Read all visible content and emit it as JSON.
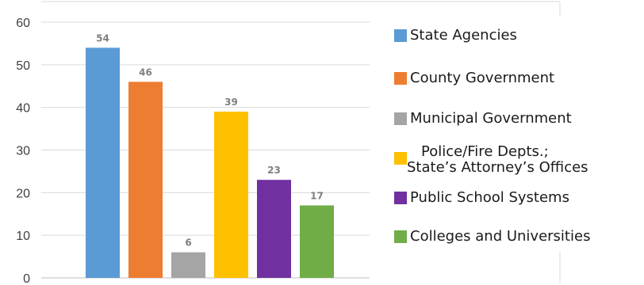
{
  "chart_data": {
    "type": "bar",
    "categories": [
      "State Agencies",
      "County Government",
      "Municipal Government",
      "Police/Fire Depts.; State’s Attorney’s Offices",
      "Public School Systems",
      "Colleges and Universities"
    ],
    "values": [
      54,
      46,
      6,
      39,
      23,
      17
    ],
    "data_labels": [
      "54",
      "46",
      "6",
      "39",
      "23",
      "17"
    ],
    "colors": [
      "#5b9bd5",
      "#ed7d31",
      "#a5a5a5",
      "#ffc000",
      "#7030a0",
      "#70ad47"
    ],
    "ylim": [
      0,
      60
    ],
    "yticks": [
      0,
      10,
      20,
      30,
      40,
      50,
      60
    ],
    "ytick_labels": [
      "0",
      "10",
      "20",
      "30",
      "40",
      "50",
      "60"
    ],
    "grid": true,
    "legend_position": "right",
    "title": "",
    "xlabel": "",
    "ylabel": ""
  },
  "legend": {
    "items": [
      {
        "label": "State Agencies",
        "color": "#5b9bd5"
      },
      {
        "label": "County Government",
        "color": "#ed7d31"
      },
      {
        "label": "Municipal Government",
        "color": "#a5a5a5"
      },
      {
        "label_line1": "Police/Fire Depts.;",
        "label_line2": "State’s Attorney’s Offices",
        "color": "#ffc000"
      },
      {
        "label": "Public School Systems",
        "color": "#7030a0"
      },
      {
        "label": "Colleges and Universities",
        "color": "#70ad47"
      }
    ]
  }
}
